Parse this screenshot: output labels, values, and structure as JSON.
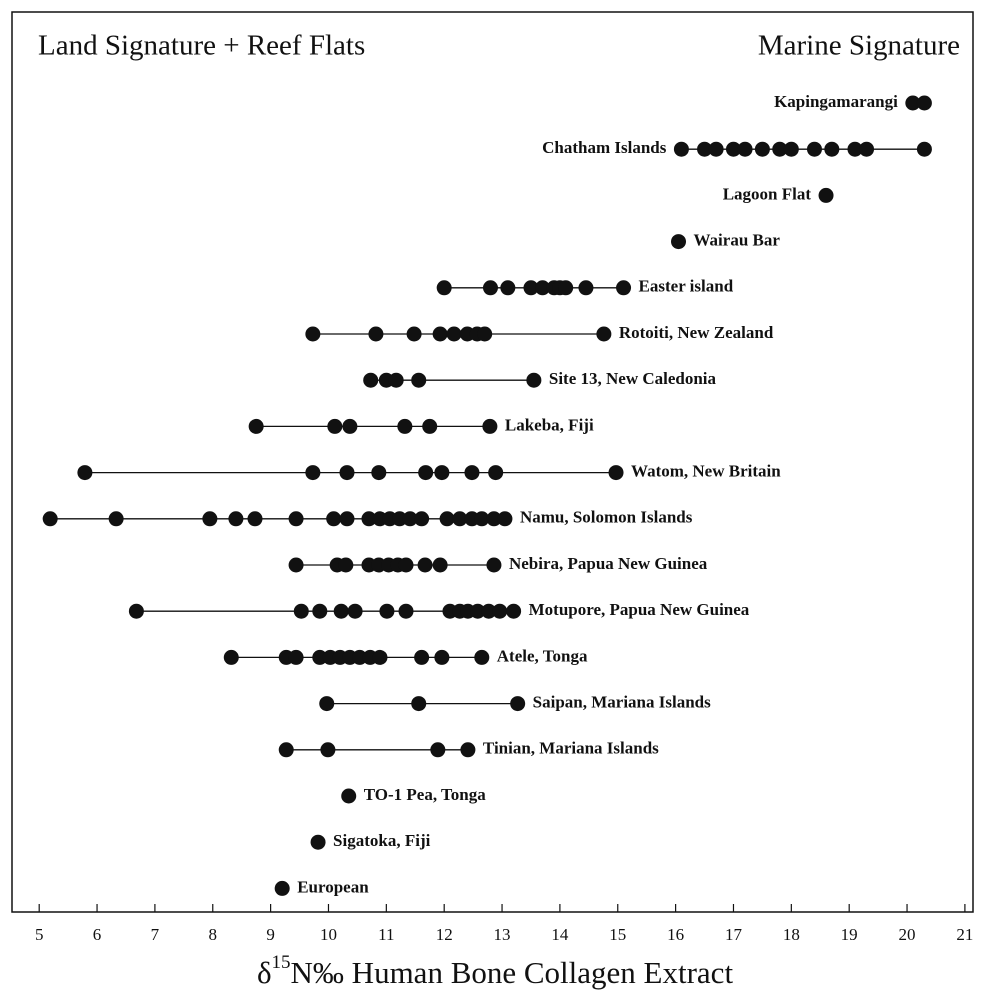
{
  "chart_data": {
    "type": "strip",
    "corner_left": "Land Signature + Reef Flats",
    "corner_right": "Marine Signature",
    "xlabel": [
      "δ",
      "15",
      "N‰ Human Bone Collagen Extract"
    ],
    "color": "#111111",
    "xlim": [
      4.53,
      21.14
    ],
    "xticks": [
      5,
      6,
      7,
      8,
      9,
      10,
      11,
      12,
      13,
      14,
      15,
      16,
      17,
      18,
      19,
      20,
      21
    ],
    "categories": [
      "Kapingamarangi",
      "Chatham Islands",
      "Lagoon Flat",
      "Wairau Bar",
      "Easter island",
      "Rotoiti, New Zealand",
      "Site 13, New Caledonia",
      "Lakeba, Fiji",
      "Watom, New Britain",
      "Namu, Solomon Islands",
      "Nebira, Papua New Guinea",
      "Motupore, Papua New Guinea",
      "Atele, Tonga",
      "Saipan, Mariana Islands",
      "Tinian, Mariana Islands",
      "TO-1 Pea, Tonga",
      "Sigatoka, Fiji",
      "European"
    ],
    "values": [
      [
        20.1,
        20.3
      ],
      [
        16.1,
        16.5,
        16.7,
        17.0,
        17.2,
        17.5,
        17.8,
        18.0,
        18.4,
        18.7,
        19.1,
        19.3,
        20.3
      ],
      [
        18.6
      ],
      [
        16.05
      ],
      [
        12.0,
        12.8,
        13.1,
        13.5,
        13.7,
        13.9,
        14.0,
        14.1,
        14.45,
        15.1
      ],
      [
        9.73,
        10.82,
        11.48,
        11.93,
        12.17,
        12.4,
        12.57,
        12.7,
        14.76
      ],
      [
        10.73,
        11.0,
        11.17,
        11.56,
        13.55
      ],
      [
        8.75,
        10.11,
        10.37,
        11.32,
        11.75,
        12.79
      ],
      [
        5.79,
        9.73,
        10.32,
        10.87,
        11.68,
        11.96,
        12.48,
        12.89,
        14.97
      ],
      [
        5.19,
        6.33,
        7.95,
        8.4,
        8.73,
        9.44,
        10.09,
        10.32,
        10.7,
        10.89,
        11.06,
        11.23,
        11.41,
        11.61,
        12.05,
        12.27,
        12.48,
        12.65,
        12.86,
        13.05
      ],
      [
        9.44,
        10.15,
        10.3,
        10.7,
        10.87,
        11.04,
        11.2,
        11.34,
        11.67,
        11.93,
        12.86
      ],
      [
        6.68,
        9.53,
        9.85,
        10.22,
        10.46,
        11.01,
        11.34,
        12.1,
        12.27,
        12.41,
        12.58,
        12.77,
        12.96,
        13.2
      ],
      [
        8.32,
        9.27,
        9.44,
        9.85,
        10.03,
        10.2,
        10.37,
        10.54,
        10.72,
        10.89,
        11.61,
        11.96,
        12.65
      ],
      [
        9.97,
        11.56,
        13.27
      ],
      [
        9.27,
        9.99,
        11.89,
        12.41
      ],
      [
        10.35
      ],
      [
        9.82
      ],
      [
        9.2
      ]
    ]
  }
}
